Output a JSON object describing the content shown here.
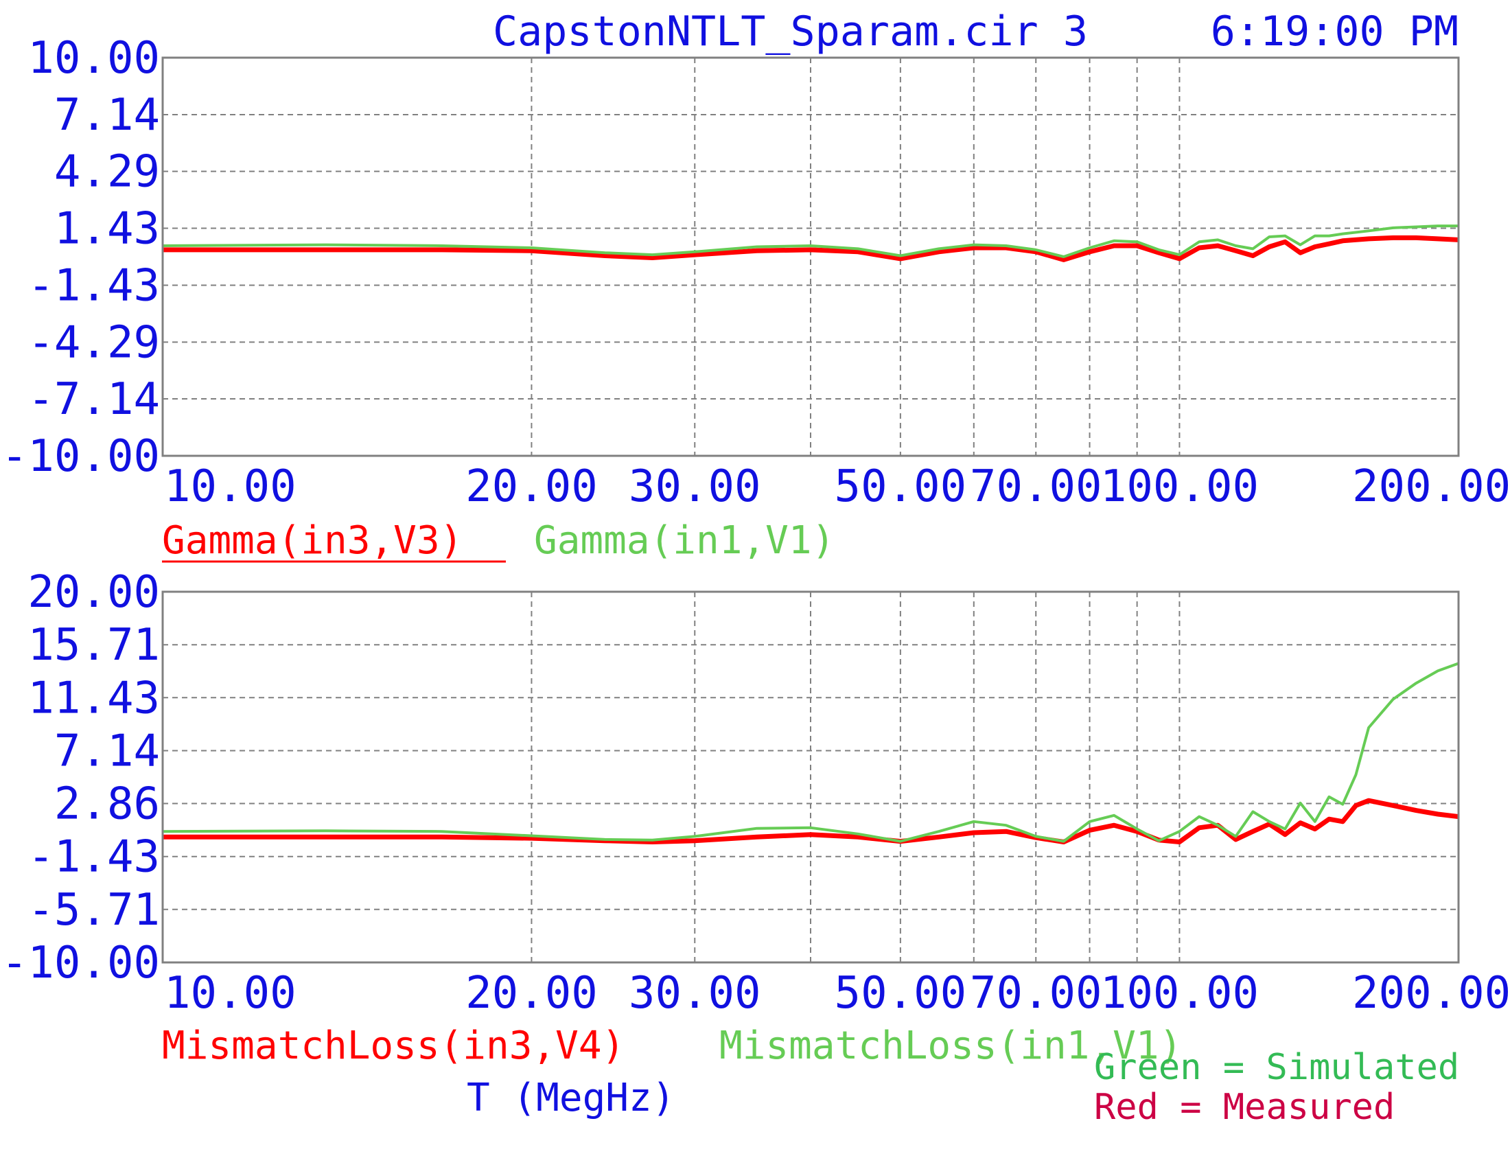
{
  "header": {
    "title": "CapstonNTLT_Sparam.cir 3",
    "time": "6:19:00 PM"
  },
  "colors": {
    "axis_text": "#1010e0",
    "red": "#ff0000",
    "green": "#66cc55",
    "note_green": "#33bb55",
    "note_red": "#cc0044",
    "grid": "#808080"
  },
  "xaxis_label": "T (MegHz)",
  "notes": {
    "green": "Green = Simulated",
    "red": "Red = Measured"
  },
  "chart_data": [
    {
      "type": "line",
      "x_scale": "log",
      "xlim": [
        8,
        200
      ],
      "ylim": [
        -10,
        10
      ],
      "x_ticks": [
        "10.00",
        "20.00",
        "30.00",
        "50.00",
        "70.00",
        "100.00",
        "200.00"
      ],
      "x_tick_values": [
        10,
        20,
        30,
        50,
        70,
        100,
        200
      ],
      "x_grid": [
        20,
        30,
        40,
        50,
        60,
        70,
        80,
        90,
        100
      ],
      "y_ticks": [
        "10.00",
        "7.14",
        "4.29",
        "1.43",
        "-1.43",
        "-4.29",
        "-7.14",
        "-10.00"
      ],
      "y_tick_values": [
        10,
        7.14,
        4.29,
        1.43,
        -1.43,
        -4.29,
        -7.14,
        -10
      ],
      "grid": true,
      "series": [
        {
          "name": "Gamma(in3,V3)",
          "color": "red",
          "x": [
            8,
            12,
            16,
            20,
            24,
            27,
            30,
            35,
            40,
            45,
            50,
            55,
            60,
            65,
            70,
            75,
            80,
            85,
            90,
            95,
            100,
            105,
            110,
            115,
            120,
            125,
            130,
            135,
            140,
            145,
            150,
            160,
            170,
            180,
            190,
            200
          ],
          "values": [
            0.35,
            0.35,
            0.35,
            0.3,
            0.05,
            -0.05,
            0.1,
            0.3,
            0.35,
            0.25,
            -0.1,
            0.25,
            0.45,
            0.45,
            0.25,
            -0.15,
            0.25,
            0.55,
            0.55,
            0.2,
            -0.1,
            0.45,
            0.55,
            0.3,
            0.05,
            0.5,
            0.75,
            0.2,
            0.5,
            0.65,
            0.8,
            0.9,
            0.95,
            0.95,
            0.9,
            0.85
          ]
        },
        {
          "name": "Gamma(in1,V1)",
          "color": "green",
          "x": [
            8,
            12,
            16,
            20,
            24,
            27,
            30,
            35,
            40,
            45,
            50,
            55,
            60,
            65,
            70,
            75,
            80,
            85,
            90,
            95,
            100,
            105,
            110,
            115,
            120,
            125,
            130,
            135,
            140,
            145,
            150,
            160,
            170,
            180,
            190,
            200
          ],
          "values": [
            0.55,
            0.6,
            0.55,
            0.45,
            0.2,
            0.1,
            0.25,
            0.5,
            0.55,
            0.4,
            0.05,
            0.4,
            0.6,
            0.55,
            0.35,
            0.0,
            0.45,
            0.8,
            0.75,
            0.35,
            0.1,
            0.75,
            0.85,
            0.55,
            0.4,
            1.0,
            1.05,
            0.6,
            1.05,
            1.05,
            1.15,
            1.3,
            1.45,
            1.5,
            1.55,
            1.55
          ]
        }
      ]
    },
    {
      "type": "line",
      "x_scale": "log",
      "xlim": [
        8,
        200
      ],
      "ylim": [
        -10,
        20
      ],
      "x_ticks": [
        "10.00",
        "20.00",
        "30.00",
        "50.00",
        "70.00",
        "100.00",
        "200.00"
      ],
      "x_tick_values": [
        10,
        20,
        30,
        50,
        70,
        100,
        200
      ],
      "x_grid": [
        20,
        30,
        40,
        50,
        60,
        70,
        80,
        90,
        100
      ],
      "y_ticks": [
        "20.00",
        "15.71",
        "11.43",
        "7.14",
        "2.86",
        "-1.43",
        "-5.71",
        "-10.00"
      ],
      "y_tick_values": [
        20,
        15.71,
        11.43,
        7.14,
        2.86,
        -1.43,
        -5.71,
        -10
      ],
      "grid": true,
      "series": [
        {
          "name": "MismatchLoss(in3,V4)",
          "color": "red",
          "x": [
            8,
            12,
            16,
            20,
            24,
            27,
            30,
            35,
            40,
            45,
            50,
            55,
            60,
            65,
            70,
            75,
            80,
            85,
            90,
            95,
            100,
            105,
            110,
            115,
            120,
            125,
            130,
            135,
            140,
            145,
            150,
            155,
            160,
            170,
            180,
            190,
            200
          ],
          "values": [
            0.15,
            0.15,
            0.15,
            0.05,
            -0.15,
            -0.25,
            -0.15,
            0.15,
            0.35,
            0.15,
            -0.2,
            0.15,
            0.5,
            0.6,
            0.1,
            -0.25,
            0.7,
            1.1,
            0.6,
            -0.1,
            -0.25,
            0.9,
            1.1,
            -0.05,
            0.6,
            1.2,
            0.35,
            1.3,
            0.8,
            1.6,
            1.4,
            2.7,
            3.1,
            2.7,
            2.3,
            2.0,
            1.8
          ]
        },
        {
          "name": "MismatchLoss(in1,V1)",
          "color": "green",
          "x": [
            8,
            12,
            16,
            20,
            24,
            27,
            30,
            35,
            40,
            45,
            50,
            55,
            60,
            65,
            70,
            75,
            80,
            85,
            90,
            95,
            100,
            105,
            110,
            115,
            120,
            125,
            130,
            135,
            140,
            145,
            150,
            155,
            160,
            170,
            180,
            190,
            200
          ],
          "values": [
            0.6,
            0.65,
            0.6,
            0.25,
            -0.05,
            -0.1,
            0.2,
            0.85,
            0.9,
            0.4,
            -0.2,
            0.6,
            1.4,
            1.1,
            0.2,
            -0.2,
            1.4,
            1.9,
            0.8,
            -0.15,
            0.6,
            1.8,
            1.1,
            0.2,
            2.2,
            1.4,
            0.8,
            2.9,
            1.4,
            3.4,
            2.8,
            5.2,
            9.0,
            11.3,
            12.6,
            13.6,
            14.2
          ]
        }
      ]
    }
  ]
}
